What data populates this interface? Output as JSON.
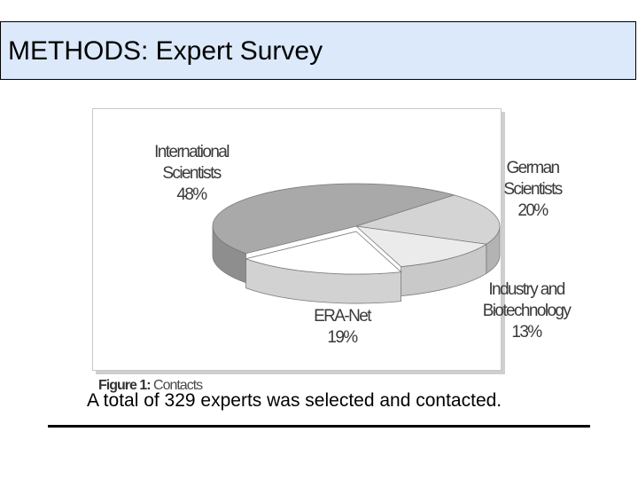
{
  "slide": {
    "title": "METHODS: Expert Survey",
    "summary": "A total of 329 experts was selected and contacted."
  },
  "figure": {
    "caption_label": "Figure 1:",
    "caption_text": " Contacts"
  },
  "chart_data": {
    "type": "pie",
    "title": "",
    "slices": [
      {
        "label_lines": [
          "International",
          "Scientists",
          "48%"
        ],
        "value": 48,
        "color": "#a9a9a9"
      },
      {
        "label_lines": [
          "German",
          "Scientists",
          "20%"
        ],
        "value": 20,
        "color": "#d4d4d4"
      },
      {
        "label_lines": [
          "Industry and",
          "Biotechnology",
          "13%"
        ],
        "value": 13,
        "color": "#ebebeb"
      },
      {
        "label_lines": [
          "ERA-Net",
          "19%"
        ],
        "value": 19,
        "color": "#ffffff"
      }
    ],
    "unit": "%",
    "style": "3d-exploded"
  }
}
